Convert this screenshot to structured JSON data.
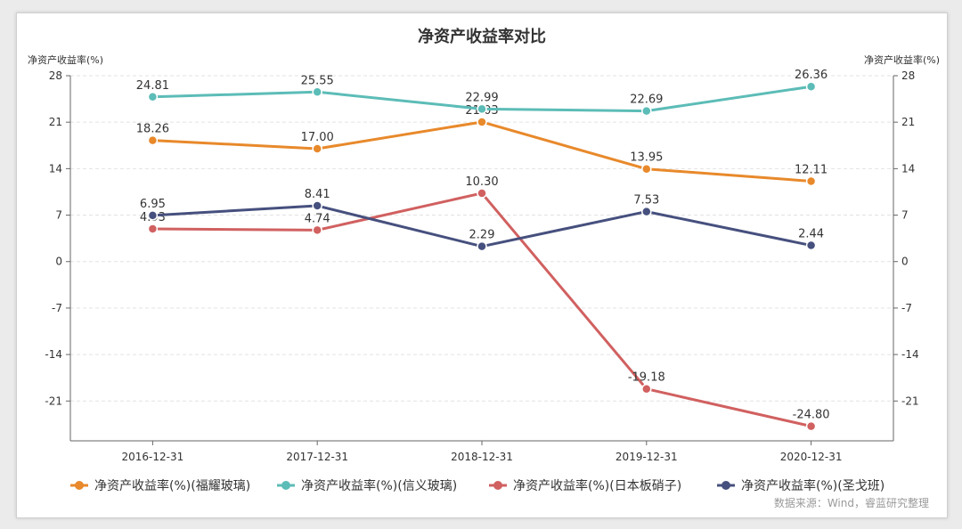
{
  "chart_data": {
    "type": "line",
    "title": "净资产收益率对比",
    "ylabel_left": "净资产收益率(%)",
    "ylabel_right": "净资产收益率(%)",
    "categories": [
      "2016-12-31",
      "2017-12-31",
      "2018-12-31",
      "2019-12-31",
      "2020-12-31"
    ],
    "yticks": [
      28,
      21,
      14,
      7,
      0,
      -7,
      -14,
      -21
    ],
    "ylim": [
      -27,
      28
    ],
    "grid": true,
    "legend_position": "bottom",
    "series": [
      {
        "name": "净资产收益率(%)(福耀玻璃)",
        "color": "#e8892b",
        "values": [
          18.26,
          17.0,
          21.03,
          13.95,
          12.11
        ],
        "labels": [
          "18.26",
          "17.00",
          "21.03",
          "13.95",
          "12.11"
        ]
      },
      {
        "name": "净资产收益率(%)(信义玻璃)",
        "color": "#5cbcb7",
        "values": [
          24.81,
          25.55,
          22.99,
          22.69,
          26.36
        ],
        "labels": [
          "24.81",
          "25.55",
          "22.99",
          "22.69",
          "26.36"
        ]
      },
      {
        "name": "净资产收益率(%)(日本板硝子)",
        "color": "#d16060",
        "values": [
          4.93,
          4.74,
          10.3,
          -19.18,
          -24.8
        ],
        "labels": [
          "4.93",
          "4.74",
          "10.30",
          "-19.18",
          "-24.80"
        ]
      },
      {
        "name": "净资产收益率(%)(圣戈班)",
        "color": "#46507e",
        "values": [
          6.95,
          8.41,
          2.29,
          7.53,
          2.44
        ],
        "labels": [
          "6.95",
          "8.41",
          "2.29",
          "7.53",
          "2.44"
        ]
      }
    ]
  },
  "source": "数据来源：Wind，睿蓝研究整理"
}
